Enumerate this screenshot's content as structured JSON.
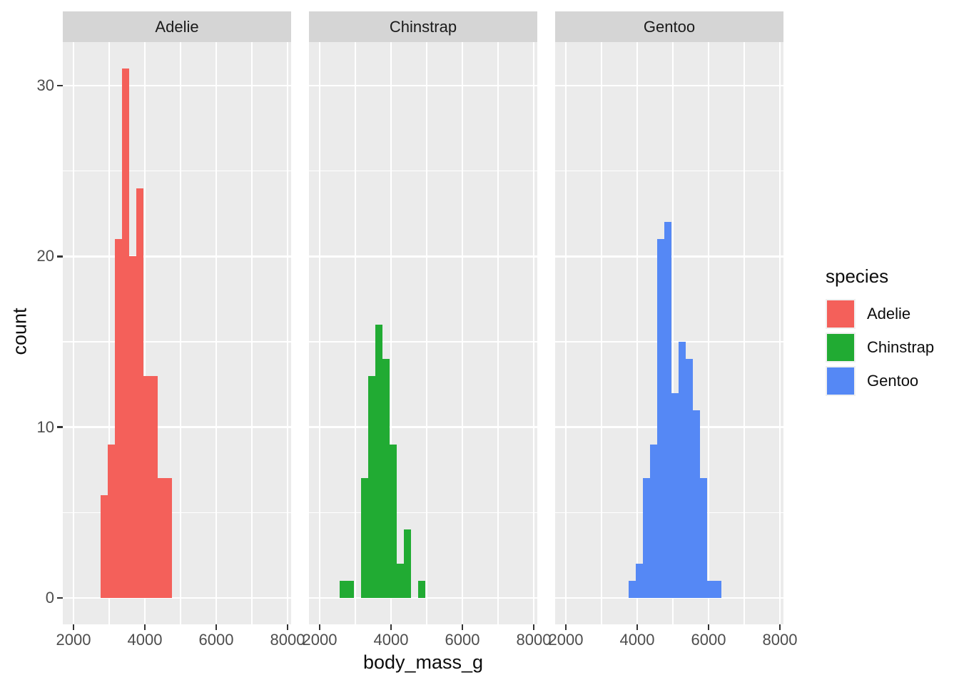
{
  "chart_data": {
    "type": "bar",
    "subtype": "faceted-histogram",
    "title": "",
    "xlabel": "body_mass_g",
    "ylabel": "count",
    "legend_title": "species",
    "legend_position": "right",
    "x_ticks": [
      2000,
      4000,
      6000,
      8000
    ],
    "x_minor_ticks": [
      3000,
      5000,
      7000
    ],
    "y_ticks": [
      0,
      10,
      20,
      30
    ],
    "y_minor_ticks": [
      5,
      15,
      25
    ],
    "xlim": [
      1700,
      8100
    ],
    "ylim": [
      -1.55,
      32.55
    ],
    "binwidth": 200,
    "grid": true,
    "facets": [
      {
        "label": "Adelie",
        "color": "#f4605a",
        "bin_start": 2750,
        "counts": [
          6,
          9,
          21,
          31,
          20,
          24,
          13,
          13,
          7,
          7
        ]
      },
      {
        "label": "Chinstrap",
        "color": "#21ab33",
        "bin_start": 2550,
        "counts": [
          1,
          1,
          0,
          7,
          13,
          16,
          14,
          9,
          2,
          4,
          0,
          1
        ]
      },
      {
        "label": "Gentoo",
        "color": "#5588f5",
        "bin_start": 3750,
        "counts": [
          1,
          2,
          7,
          9,
          21,
          22,
          12,
          15,
          14,
          11,
          7,
          1,
          1
        ]
      }
    ],
    "legend_entries": [
      {
        "label": "Adelie",
        "color": "#f4605a"
      },
      {
        "label": "Chinstrap",
        "color": "#21ab33"
      },
      {
        "label": "Gentoo",
        "color": "#5588f5"
      }
    ]
  },
  "styles": {
    "panel_bg": "#ebebeb",
    "strip_bg": "#d5d5d5",
    "grid_color": "#ffffff",
    "tick_color": "#333333",
    "tick_label_color": "#4d4d4d",
    "axis_title_color": "#0d0d0d",
    "strip_text_color": "#1a1a1a",
    "legend_key_bg": "#f0f0f0",
    "background": "#ffffff"
  }
}
